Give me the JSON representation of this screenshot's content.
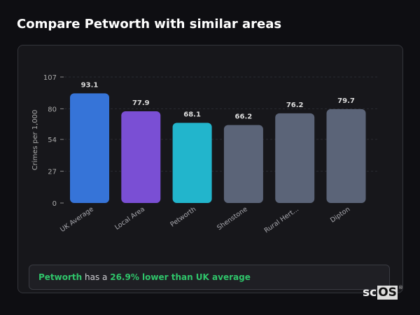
{
  "title": "Compare Petworth with similar areas",
  "chart_data": {
    "type": "bar",
    "categories": [
      "UK Average",
      "Local Area",
      "Petworth",
      "Shenstone",
      "Rural Hert...",
      "Dipton"
    ],
    "values": [
      93.1,
      77.9,
      68.1,
      66.2,
      76.2,
      79.7
    ],
    "colors": [
      "#3674d8",
      "#7a4fd4",
      "#22b5cc",
      "#5b6478",
      "#5b6478",
      "#5b6478"
    ],
    "ylabel": "Crimes per 1,000",
    "xlabel": "",
    "yticks": [
      0,
      27,
      54,
      80,
      107
    ],
    "ylim": [
      0,
      107
    ],
    "grid": true
  },
  "summary": {
    "area": "Petworth",
    "middle": " has a ",
    "comparison": "26.9% lower than UK average"
  },
  "logo": {
    "text_a": "sc",
    "text_b": "OS",
    "mark": "®"
  }
}
